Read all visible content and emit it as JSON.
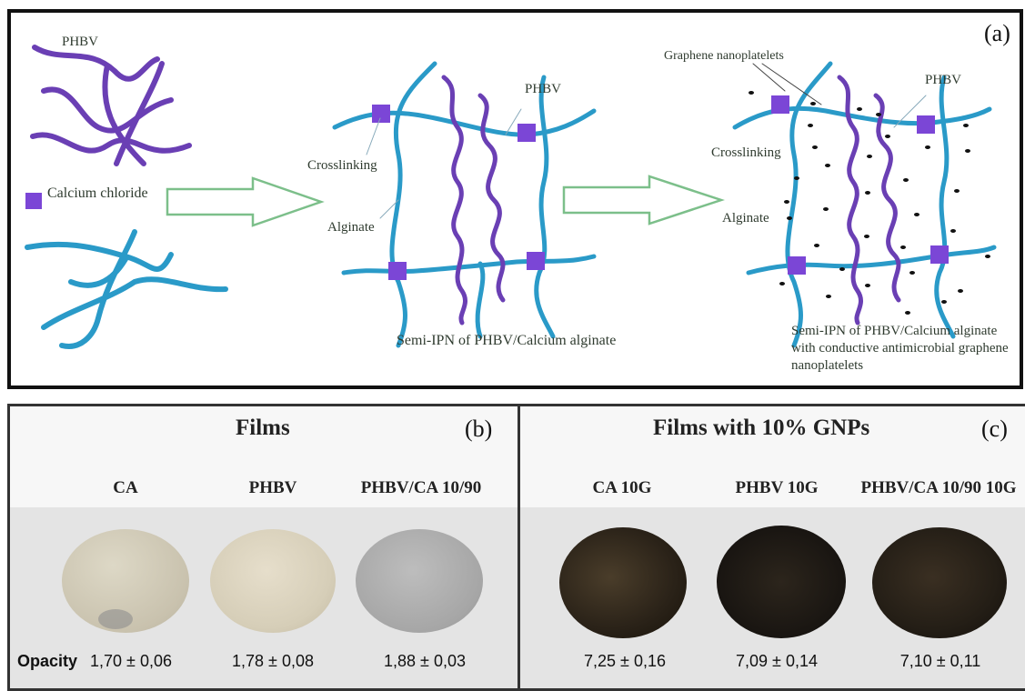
{
  "panel_a": {
    "letter": "(a)",
    "phbv_label": "PHBV",
    "calcium_chloride_label": "Calcium chloride",
    "middle": {
      "phbv_label": "PHBV",
      "crosslinking_label": "Crosslinking",
      "alginate_label": "Alginate",
      "caption": "Semi-IPN of PHBV/Calcium alginate"
    },
    "right": {
      "graphene_label": "Graphene nanoplatelets",
      "phbv_label": "PHBV",
      "crosslinking_label": "Crosslinking",
      "alginate_label": "Alginate",
      "caption_line1": "Semi-IPN of PHBV/Calcium alginate",
      "caption_line2": "with conductive  antimicrobial graphene",
      "caption_line3": "nanoplatelets"
    },
    "colors": {
      "phbv": "#6a3fb4",
      "alginate": "#2a9ac8",
      "crosslink": "#7b46d6",
      "arrow": "#7cbf8a"
    }
  },
  "panel_b": {
    "title": "Films",
    "letter": "(b)",
    "opacity_label": "Opacity",
    "samples": [
      {
        "name": "CA",
        "opacity": "1,70 ± 0,06",
        "color": "#d2ccb9"
      },
      {
        "name": "PHBV",
        "opacity": "1,78 ± 0,08",
        "color": "#d9d1bb"
      },
      {
        "name": "PHBV/CA 10/90",
        "opacity": "1,88 ± 0,03",
        "color": "#a9a9a9"
      }
    ]
  },
  "panel_c": {
    "title": "Films with 10% GNPs",
    "letter": "(c)",
    "samples": [
      {
        "name": "CA 10G",
        "opacity": "7,25 ± 0,16",
        "color": "#2a2218"
      },
      {
        "name": "PHBV 10G",
        "opacity": "7,09 ± 0,14",
        "color": "#1a1612"
      },
      {
        "name": "PHBV/CA 10/90 10G",
        "opacity": "7,10 ± 0,11",
        "color": "#241e16"
      }
    ]
  }
}
